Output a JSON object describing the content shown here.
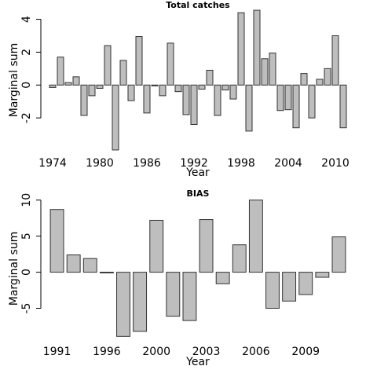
{
  "chart_data": [
    {
      "type": "bar",
      "title": "Total catches",
      "xlabel": "Year",
      "ylabel": "Marginal sum",
      "categories": [
        "1974",
        null,
        null,
        null,
        null,
        null,
        "1980",
        null,
        null,
        null,
        null,
        null,
        "1986",
        null,
        null,
        null,
        null,
        null,
        "1992",
        null,
        null,
        null,
        null,
        null,
        "1998",
        null,
        null,
        null,
        null,
        null,
        "2004",
        null,
        null,
        null,
        null,
        null,
        "2010",
        null
      ],
      "values": [
        -0.15,
        1.7,
        0.15,
        0.5,
        -1.85,
        -0.65,
        -0.2,
        2.4,
        -3.95,
        1.5,
        -0.95,
        2.95,
        -1.7,
        -0.05,
        -0.65,
        2.55,
        -0.4,
        -1.8,
        -2.4,
        -0.25,
        0.9,
        -1.85,
        -0.3,
        -0.85,
        4.4,
        -2.8,
        4.55,
        1.6,
        1.95,
        -1.55,
        -1.5,
        -2.6,
        0.7,
        -2.0,
        0.35,
        1.0,
        3.0,
        -2.6
      ],
      "color": "#bebebe",
      "ylim": [
        -4.0,
        4.6
      ],
      "yticks": [
        -2,
        0,
        2,
        4
      ]
    },
    {
      "type": "bar",
      "title": "BIAS",
      "xlabel": "Year",
      "ylabel": "Marginal sum",
      "categories": [
        "1991",
        null,
        null,
        "1996",
        null,
        null,
        "2000",
        null,
        null,
        "2003",
        null,
        null,
        "2006",
        null,
        null,
        "2009",
        null,
        null
      ],
      "values": [
        8.7,
        2.4,
        1.9,
        -0.1,
        -8.9,
        -8.2,
        7.2,
        -6.1,
        -6.7,
        7.3,
        -1.6,
        3.8,
        10.0,
        -5.0,
        -4.0,
        -3.1,
        -0.7,
        4.9
      ],
      "color": "#bebebe",
      "ylim": [
        -9.3,
        10.3
      ],
      "yticks": [
        -5,
        0,
        5,
        10
      ]
    }
  ]
}
